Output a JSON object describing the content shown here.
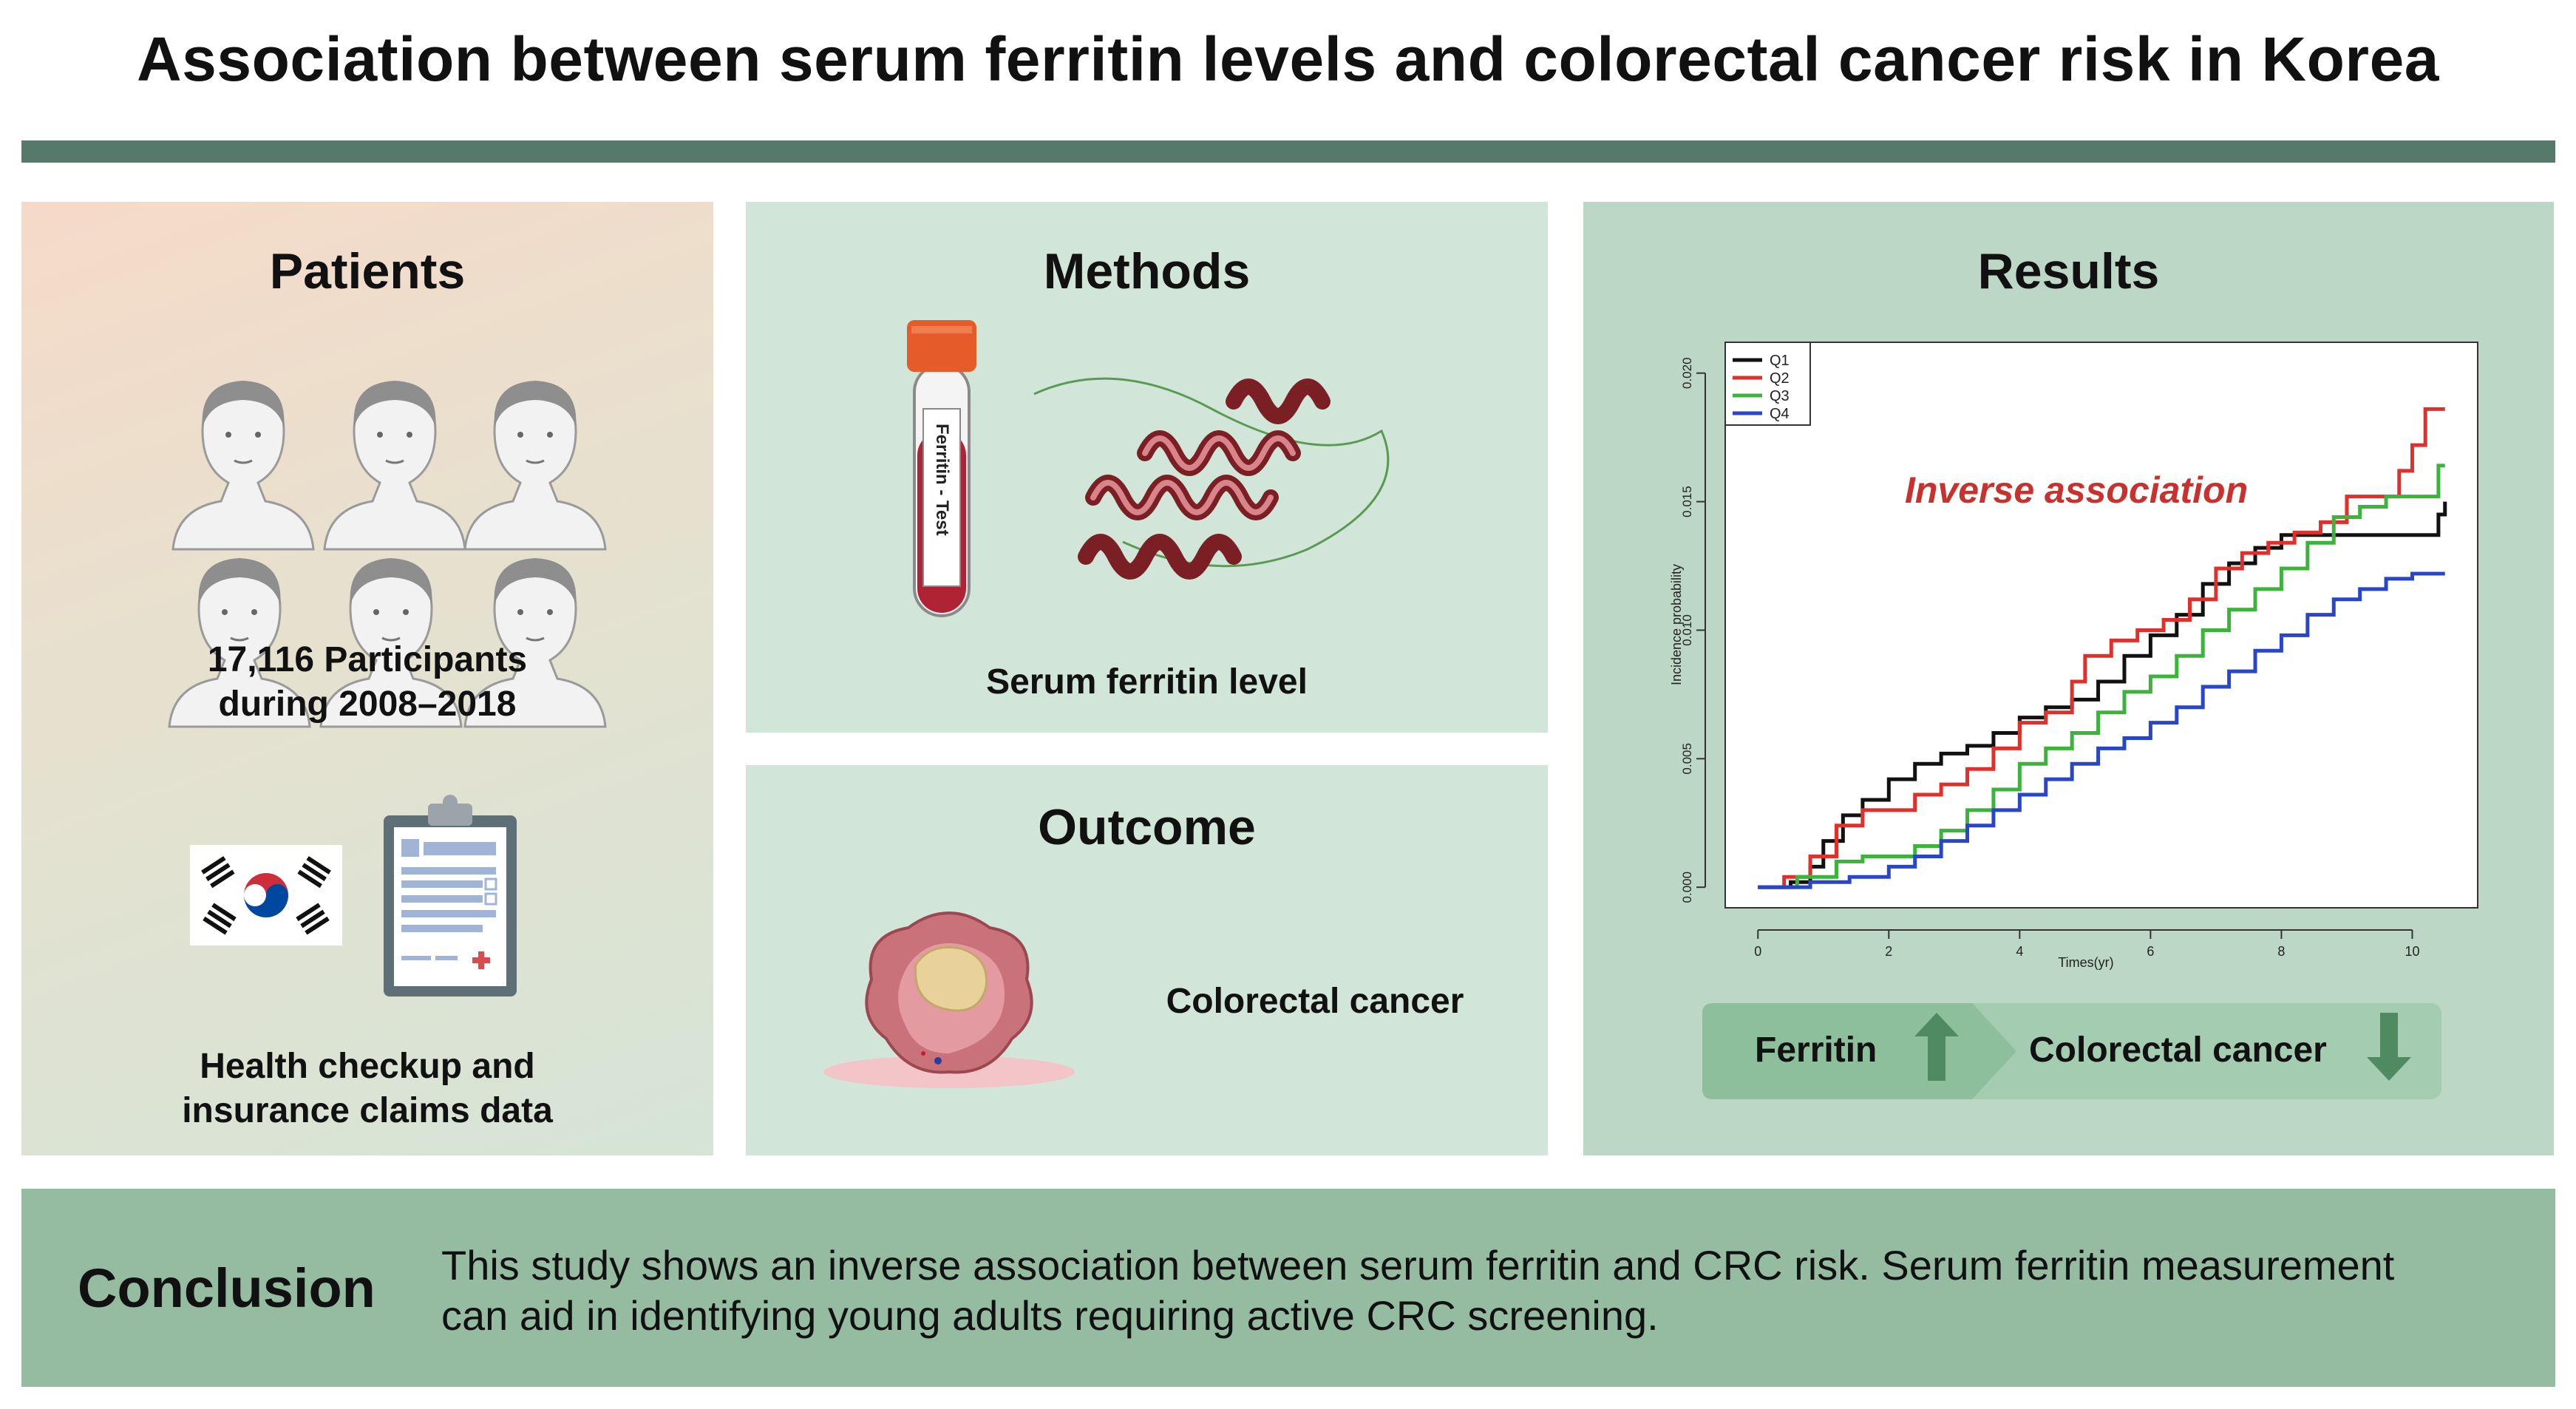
{
  "title": "Association between serum ferritin levels and colorectal cancer risk in Korea",
  "patients": {
    "heading": "Patients",
    "participants_line1": "17,116 Participants",
    "participants_line2": "during 2008–2018",
    "data_line1": "Health checkup and",
    "data_line2": "insurance claims data"
  },
  "methods": {
    "heading": "Methods",
    "tube_label": "Ferritin - Test",
    "caption": "Serum ferritin level"
  },
  "outcome": {
    "heading": "Outcome",
    "caption": "Colorectal cancer"
  },
  "results": {
    "heading": "Results",
    "annotation": "Inverse association",
    "arrow_left": "Ferritin",
    "arrow_right": "Colorectal cancer"
  },
  "conclusion": {
    "label": "Conclusion",
    "line1": "This study shows an inverse association between serum ferritin and CRC risk. Serum ferritin measurement",
    "line2": "can aid in identifying young adults requiring active CRC screening."
  },
  "colors": {
    "bar": "#55796a",
    "q1": "#111111",
    "q2": "#e0302b",
    "q3": "#3cb43c",
    "q4": "#2a46c8",
    "annotation": "#c8322e",
    "arrow_up": "#4f8a62"
  },
  "chart_data": {
    "type": "line",
    "xlabel": "Times(yr)",
    "ylabel": "Incidence probability",
    "xlim": [
      -0.5,
      11
    ],
    "ylim": [
      -0.0008,
      0.0212
    ],
    "xticks": [
      0,
      2,
      4,
      6,
      8,
      10
    ],
    "yticks": [
      0.0,
      0.005,
      0.01,
      0.015,
      0.02
    ],
    "ytick_labels": [
      "0.000",
      "0.005",
      "0.010",
      "0.015",
      "0.020"
    ],
    "legend_position": "top-left",
    "grid": false,
    "series": [
      {
        "name": "Q1",
        "color": "#111111",
        "x": [
          0,
          0.5,
          0.8,
          1.0,
          1.3,
          1.6,
          2.0,
          2.4,
          2.8,
          3.2,
          3.6,
          4.0,
          4.4,
          4.8,
          5.2,
          5.6,
          6.0,
          6.4,
          6.8,
          7.2,
          7.6,
          8.0,
          8.4,
          8.8,
          9.2,
          9.6,
          10.0,
          10.4,
          10.5
        ],
        "y": [
          0,
          0.0002,
          0.0008,
          0.0018,
          0.0028,
          0.0034,
          0.0042,
          0.0048,
          0.0052,
          0.0055,
          0.006,
          0.0066,
          0.007,
          0.0073,
          0.008,
          0.009,
          0.0098,
          0.0106,
          0.0118,
          0.0126,
          0.0132,
          0.0137,
          0.0137,
          0.0137,
          0.0137,
          0.0137,
          0.0137,
          0.0145,
          0.015
        ]
      },
      {
        "name": "Q2",
        "color": "#e0302b",
        "x": [
          0,
          0.4,
          0.8,
          1.2,
          1.6,
          2.0,
          2.4,
          2.8,
          3.2,
          3.6,
          4.0,
          4.4,
          4.8,
          5.0,
          5.4,
          5.8,
          6.2,
          6.6,
          7.0,
          7.4,
          7.8,
          8.2,
          8.6,
          9.0,
          9.4,
          9.8,
          10.0,
          10.2,
          10.5
        ],
        "y": [
          0,
          0.0004,
          0.0012,
          0.0024,
          0.003,
          0.003,
          0.0036,
          0.004,
          0.0046,
          0.0054,
          0.0064,
          0.0068,
          0.008,
          0.009,
          0.0096,
          0.01,
          0.0104,
          0.0112,
          0.0124,
          0.013,
          0.0134,
          0.0138,
          0.0142,
          0.0152,
          0.0152,
          0.0162,
          0.0172,
          0.0186,
          0.0186
        ]
      },
      {
        "name": "Q3",
        "color": "#3cb43c",
        "x": [
          0,
          0.6,
          1.2,
          1.6,
          2.0,
          2.4,
          2.8,
          3.2,
          3.6,
          4.0,
          4.4,
          4.8,
          5.2,
          5.6,
          6.0,
          6.4,
          6.8,
          7.2,
          7.6,
          8.0,
          8.4,
          8.8,
          9.2,
          9.6,
          10.0,
          10.4,
          10.5
        ],
        "y": [
          0,
          0.0004,
          0.001,
          0.0012,
          0.0012,
          0.0016,
          0.0022,
          0.003,
          0.0038,
          0.0048,
          0.0054,
          0.006,
          0.0068,
          0.0076,
          0.0082,
          0.009,
          0.01,
          0.0108,
          0.0116,
          0.0124,
          0.0134,
          0.0144,
          0.0148,
          0.0152,
          0.0152,
          0.0164,
          0.0164
        ]
      },
      {
        "name": "Q4",
        "color": "#2a46c8",
        "x": [
          0,
          0.8,
          1.4,
          2.0,
          2.4,
          2.8,
          3.2,
          3.6,
          4.0,
          4.4,
          4.8,
          5.2,
          5.6,
          6.0,
          6.4,
          6.8,
          7.2,
          7.6,
          8.0,
          8.4,
          8.8,
          9.2,
          9.6,
          10.0,
          10.5
        ],
        "y": [
          0,
          0.0002,
          0.0004,
          0.0008,
          0.0012,
          0.0018,
          0.0024,
          0.003,
          0.0036,
          0.0042,
          0.0048,
          0.0054,
          0.0058,
          0.0064,
          0.007,
          0.0078,
          0.0084,
          0.0092,
          0.0098,
          0.0106,
          0.0112,
          0.0116,
          0.012,
          0.0122,
          0.0122
        ]
      }
    ]
  }
}
